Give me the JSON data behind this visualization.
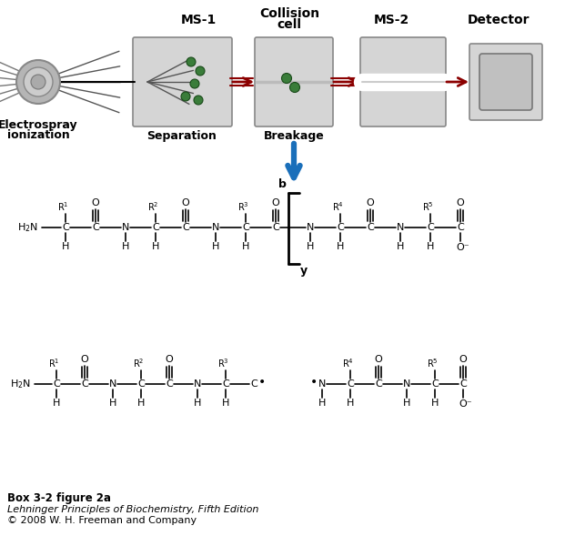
{
  "bg_color": "#ffffff",
  "box_color": "#d0d0d0",
  "red_arrow_color": "#8b0000",
  "blue_arrow_color": "#1a6fba",
  "green_dot_color": "#3a7d3a",
  "caption_line1": "Box 3-2 figure 2a",
  "caption_line2": "Lehninger Principles of Biochemistry, Fifth Edition",
  "caption_line3": "© 2008 W. H. Freeman and Company"
}
